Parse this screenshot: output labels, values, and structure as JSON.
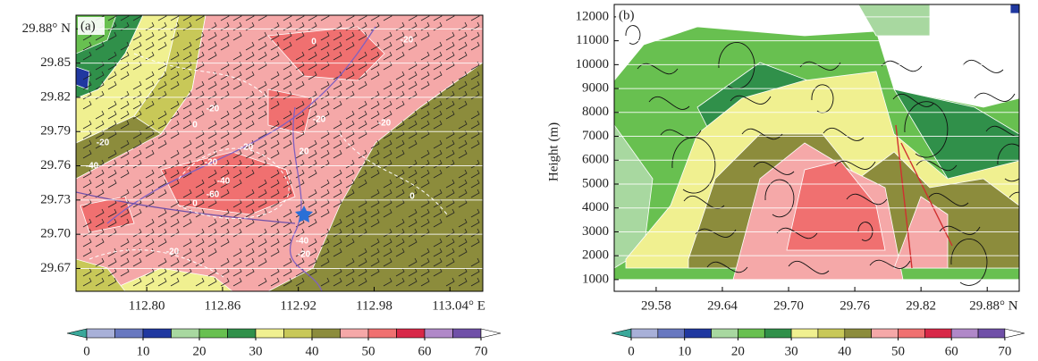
{
  "chart_data": [
    {
      "type": "contour-map",
      "panel_label": "(a)",
      "xlim": [
        112.744,
        113.066
      ],
      "ylim": [
        29.65,
        29.892
      ],
      "xticks": [
        {
          "value": 112.8,
          "label": "112.80"
        },
        112.86,
        112.92,
        112.98,
        {
          "value": 113.04,
          "label": "113.04° E"
        }
      ],
      "yticks": [
        29.67,
        {
          "value": 29.7,
          "label": "29.70"
        },
        29.73,
        29.76,
        29.79,
        29.82,
        29.85,
        {
          "value": 29.88,
          "label": "29.88° N"
        }
      ],
      "grid": true,
      "contour_labels": [
        "0",
        "-20",
        "-20",
        "-20",
        "-20",
        "0",
        "-20",
        "-20",
        "20",
        "-40",
        "-20",
        "-40",
        "-60",
        "0",
        "0",
        "-40",
        "-20",
        "-20"
      ],
      "colorbar": {
        "levels": [
          0,
          5,
          10,
          15,
          20,
          25,
          30,
          35,
          40,
          45,
          50,
          55,
          60,
          65,
          70
        ],
        "colors": [
          "#3aa89a",
          "#a8b0d8",
          "#6878c0",
          "#2038a0",
          "#a8d8a0",
          "#68c050",
          "#30904a",
          "#f0f090",
          "#c8c858",
          "#8c8c3c",
          "#f5a8a8",
          "#f07070",
          "#d82848",
          "#b088c8",
          "#7050a8",
          "#ffffff"
        ],
        "ticks": [
          0,
          10,
          20,
          30,
          40,
          50,
          60,
          70
        ]
      }
    },
    {
      "type": "contour-section",
      "panel_label": "(b)",
      "ylabel": "Height (m)",
      "xlim": [
        29.542,
        29.909
      ],
      "ylim": [
        510,
        12520
      ],
      "xticks": [
        29.58,
        29.64,
        {
          "value": 29.7,
          "label": "29.70"
        },
        29.76,
        29.82,
        {
          "value": 29.88,
          "label": "29.88° N"
        }
      ],
      "yticks": [
        1000,
        2000,
        3000,
        4000,
        5000,
        6000,
        7000,
        8000,
        9000,
        10000,
        11000,
        12000
      ],
      "grid": true,
      "colorbar": {
        "levels": [
          0,
          5,
          10,
          15,
          20,
          25,
          30,
          35,
          40,
          45,
          50,
          55,
          60,
          65,
          70
        ],
        "colors": [
          "#3aa89a",
          "#a8b0d8",
          "#6878c0",
          "#2038a0",
          "#a8d8a0",
          "#68c050",
          "#30904a",
          "#f0f090",
          "#c8c858",
          "#8c8c3c",
          "#f5a8a8",
          "#f07070",
          "#d82848",
          "#b088c8",
          "#7050a8",
          "#ffffff"
        ],
        "ticks": [
          0,
          10,
          20,
          30,
          40,
          50,
          60,
          70
        ]
      }
    }
  ]
}
